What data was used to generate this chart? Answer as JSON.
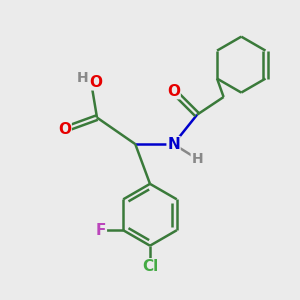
{
  "bg_color": "#ebebeb",
  "bond_color": "#3a7a3a",
  "bond_width": 1.8,
  "atom_colors": {
    "O": "#e60000",
    "N": "#0000cc",
    "Cl": "#44aa44",
    "F": "#bb44bb",
    "H": "#888888",
    "C": "#3a7a3a"
  },
  "font_size": 9,
  "fig_size": [
    3.0,
    3.0
  ],
  "dpi": 100
}
